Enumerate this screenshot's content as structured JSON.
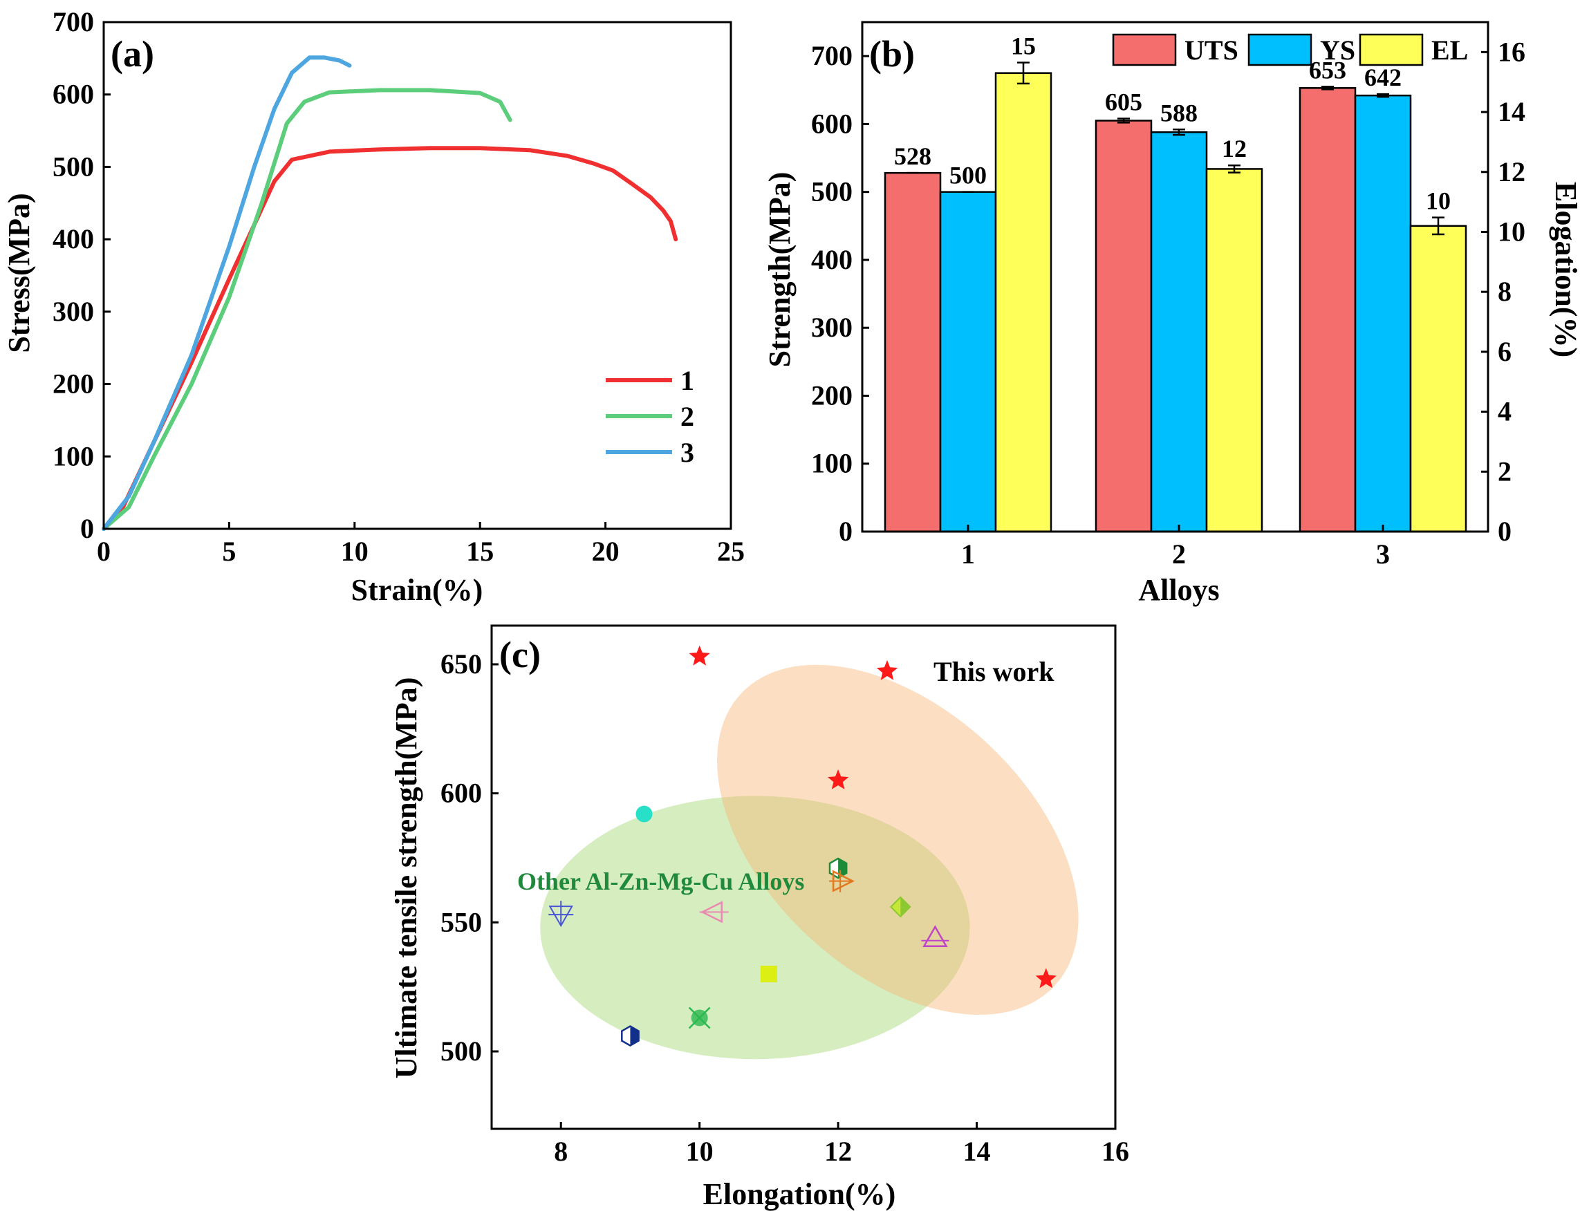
{
  "chart_data": [
    {
      "panel_label": "(a)",
      "type": "line",
      "xlabel": "Strain(%)",
      "ylabel": "Stress(MPa)",
      "xlim": [
        0,
        25
      ],
      "ylim": [
        0,
        700
      ],
      "xticks": [
        "0",
        "5",
        "10",
        "15",
        "20",
        "25"
      ],
      "yticks": [
        "0",
        "100",
        "200",
        "300",
        "400",
        "500",
        "600",
        "700"
      ],
      "legend_position": "right",
      "series": [
        {
          "name": "1",
          "color": "#f03030",
          "x": [
            0,
            0.7,
            2,
            3.5,
            5,
            6,
            6.8,
            7.5,
            9,
            11,
            13,
            15,
            17,
            18.5,
            19.5,
            20.3,
            21,
            21.8,
            22.3,
            22.6,
            22.8
          ],
          "y": [
            0,
            25,
            120,
            230,
            345,
            420,
            480,
            510,
            521,
            524,
            526,
            526,
            523,
            515,
            505,
            495,
            478,
            458,
            440,
            425,
            400
          ]
        },
        {
          "name": "2",
          "color": "#5ccd7a",
          "x": [
            0,
            1,
            2,
            3.5,
            5,
            6.3,
            7.3,
            8,
            9,
            11,
            13,
            15,
            15.8,
            16.2
          ],
          "y": [
            0,
            30,
            100,
            200,
            320,
            450,
            560,
            590,
            603,
            606,
            606,
            602,
            590,
            565
          ]
        },
        {
          "name": "3",
          "color": "#4da6df",
          "x": [
            0,
            1,
            2,
            3.5,
            5,
            6,
            6.8,
            7.5,
            8.2,
            8.8,
            9.4,
            9.8
          ],
          "y": [
            0,
            45,
            120,
            240,
            390,
            500,
            580,
            630,
            651,
            651,
            647,
            640
          ]
        }
      ]
    },
    {
      "panel_label": "(b)",
      "type": "bar",
      "xlabel": "Alloys",
      "ylabel": "Strength(MPa)",
      "y2label": "Elogation(%)",
      "categories": [
        "1",
        "2",
        "3"
      ],
      "ylim": [
        0,
        750
      ],
      "y2lim": [
        0,
        17
      ],
      "yticks": [
        "0",
        "100",
        "200",
        "300",
        "400",
        "500",
        "600",
        "700"
      ],
      "y2ticks": [
        "0",
        "2",
        "4",
        "6",
        "8",
        "10",
        "12",
        "14",
        "16"
      ],
      "legend_position": "top",
      "series": [
        {
          "name": "UTS",
          "color": "#f56e6e",
          "axis": "left",
          "values": [
            528,
            605,
            653
          ],
          "errors": [
            0,
            3,
            2
          ],
          "labels": [
            "528",
            "605",
            "653"
          ]
        },
        {
          "name": "YS",
          "color": "#00bfff",
          "axis": "left",
          "values": [
            500,
            588,
            642
          ],
          "errors": [
            0,
            4,
            2
          ],
          "labels": [
            "500",
            "588",
            "642"
          ]
        },
        {
          "name": "EL",
          "color": "#ffff5a",
          "axis": "right",
          "values": [
            15.3,
            12.1,
            10.2
          ],
          "errors": [
            0.35,
            0.12,
            0.28
          ],
          "labels": [
            "15",
            "12",
            "10"
          ]
        }
      ]
    },
    {
      "panel_label": "(c)",
      "type": "scatter",
      "xlabel": "Elongation(%)",
      "ylabel": "Ultimate tensile strength(MPa)",
      "xlim": [
        7,
        16
      ],
      "ylim": [
        470,
        665
      ],
      "xticks": [
        "8",
        "10",
        "12",
        "14",
        "16"
      ],
      "yticks": [
        "500",
        "550",
        "600",
        "650"
      ],
      "annotation": "Other Al-Zn-Mg-Cu Alloys",
      "annotation_color": "#1f8a3c",
      "legend_position": "top-right",
      "regions": [
        {
          "cx": 10.8,
          "cy": 548,
          "rx": 3.1,
          "ry": 51,
          "rotate": 0,
          "color": "#9ed46a"
        },
        {
          "cx": 12.86,
          "cy": 582,
          "rx": 3.8,
          "ry": 32,
          "rotate": 47,
          "color": "#f8b26d"
        }
      ],
      "series": [
        {
          "name": "This work",
          "marker": "star",
          "color": "#ff1a1a",
          "x": [
            10,
            12,
            15
          ],
          "y": [
            653,
            605,
            528
          ]
        },
        {
          "name": "Other Al-Zn-Mg-Cu Alloys",
          "marker": "various",
          "points": [
            {
              "x": 9.2,
              "y": 592,
              "marker": "circle",
              "color": "#28e0c8"
            },
            {
              "x": 12,
              "y": 571,
              "marker": "hexagon-half",
              "color": "#1d8a3a"
            },
            {
              "x": 12.05,
              "y": 566,
              "marker": "triangle-right-plus",
              "color": "#e07820"
            },
            {
              "x": 8,
              "y": 553,
              "marker": "triangle-down-plus",
              "color": "#4a56d6"
            },
            {
              "x": 10.2,
              "y": 554,
              "marker": "triangle-left-line",
              "color": "#e98bb0"
            },
            {
              "x": 12.9,
              "y": 556,
              "marker": "diamond-half",
              "color": "#8dc832"
            },
            {
              "x": 13.4,
              "y": 544,
              "marker": "triangle-up-line",
              "color": "#c044c8"
            },
            {
              "x": 11,
              "y": 530,
              "marker": "square",
              "color": "#dcef14"
            },
            {
              "x": 10,
              "y": 513,
              "marker": "circle-x",
              "color": "#2bb84f"
            },
            {
              "x": 9,
              "y": 506,
              "marker": "hexagon-half",
              "color": "#12308a"
            }
          ]
        }
      ]
    }
  ]
}
